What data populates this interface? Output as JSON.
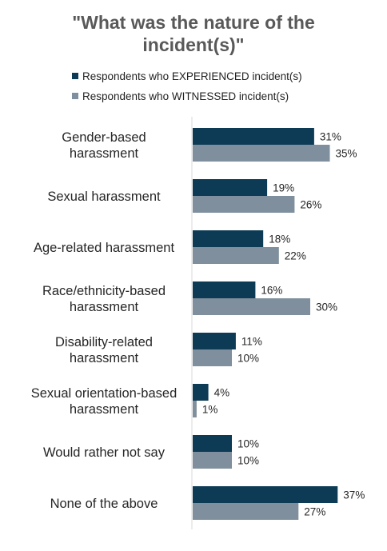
{
  "chart_data": {
    "type": "bar",
    "orientation": "horizontal",
    "title_lines": [
      "\"What was the nature of the",
      "incident(s)\""
    ],
    "categories": [
      [
        "Gender-based",
        "harassment"
      ],
      [
        "Sexual harassment"
      ],
      [
        "Age-related harassment"
      ],
      [
        "Race/ethnicity-based",
        "harassment"
      ],
      [
        "Disability-related",
        "harassment"
      ],
      [
        "Sexual orientation-based",
        "harassment"
      ],
      [
        "Would rather not say"
      ],
      [
        "None of the above"
      ]
    ],
    "series": [
      {
        "name": "Respondents who EXPERIENCED incident(s)",
        "color": "#0d3b55",
        "values": [
          31,
          19,
          18,
          16,
          11,
          4,
          10,
          37
        ],
        "labels": [
          "31%",
          "19%",
          "18%",
          "16%",
          "11%",
          "4%",
          "10%",
          "37%"
        ]
      },
      {
        "name": "Respondents who WITNESSED incident(s)",
        "color": "#7f8f9d",
        "values": [
          35,
          26,
          22,
          30,
          10,
          1,
          10,
          27
        ],
        "labels": [
          "35%",
          "26%",
          "22%",
          "30%",
          "10%",
          "1%",
          "10%",
          "27%"
        ]
      }
    ],
    "xlim": [
      0,
      37
    ],
    "value_unit": "%",
    "legend_position": "top",
    "grid": false
  }
}
